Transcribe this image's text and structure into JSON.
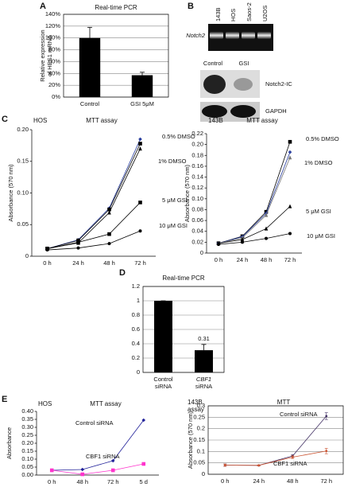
{
  "panel_labels": [
    "A",
    "B",
    "C",
    "D",
    "E"
  ],
  "gel": {
    "lanes": [
      "143B",
      "HOS",
      "Saos-2",
      "U2OS"
    ],
    "label": "Notch2"
  },
  "western": {
    "lanes": [
      "Control",
      "GSI"
    ],
    "bands": [
      "Notch2-IC",
      "GAPDH"
    ]
  },
  "chart_data": [
    {
      "type": "bar",
      "title": "Real-time PCR",
      "ylabel": [
        "Relative expression",
        "of HES1 mRNA"
      ],
      "categories": [
        "Control",
        "GSI 5μM"
      ],
      "values": [
        100,
        37
      ],
      "errors": [
        18,
        5
      ],
      "color": "#000000",
      "ylim": [
        0,
        140
      ],
      "yticks": [
        {
          "value": 0,
          "label": "0%"
        },
        {
          "value": 20,
          "label": "20%"
        },
        {
          "value": 40,
          "label": "40%"
        },
        {
          "value": 60,
          "label": "60%"
        },
        {
          "value": 80,
          "label": "80%"
        },
        {
          "value": 100,
          "label": "100%"
        },
        {
          "value": 120,
          "label": "120%"
        },
        {
          "value": 140,
          "label": "140%"
        }
      ],
      "grid": true
    },
    {
      "type": "line",
      "title": "MTT assay",
      "cell_line": "HOS",
      "ylabel": [
        "Absorbance (570 nm)"
      ],
      "categories": [
        "0 h",
        "24 h",
        "48 h",
        "72 h"
      ],
      "series": [
        {
          "color": "#2a3fa0",
          "marker": "diamond",
          "values": [
            0.012,
            0.026,
            0.076,
            0.185
          ]
        },
        {
          "name": "0.5% DMSO",
          "color": "#000000",
          "marker": "square",
          "values": [
            0.012,
            0.025,
            0.074,
            0.178
          ]
        },
        {
          "name": "1% DMSO",
          "color": "#000000",
          "marker": "triangle",
          "values": [
            0.012,
            0.021,
            0.069,
            0.17
          ]
        },
        {
          "name": "5 μM GSI",
          "color": "#000000",
          "marker": "square",
          "values": [
            0.012,
            0.022,
            0.035,
            0.085
          ]
        },
        {
          "name": "10 μM GSI",
          "color": "#000000",
          "marker": "circle",
          "values": [
            0.01,
            0.013,
            0.02,
            0.04
          ]
        }
      ],
      "ylim": [
        0,
        0.2
      ],
      "yticks": [
        0,
        0.05,
        {
          "value": 0.1,
          "label": "0.10"
        },
        0.15,
        {
          "value": 0.2,
          "label": "0.20"
        }
      ],
      "grid": false
    },
    {
      "type": "line",
      "title": "MTT assay",
      "cell_line": "143B",
      "ylabel": [
        "Absorbance (570 nm)"
      ],
      "categories": [
        "0 h",
        "24 h",
        "48 h",
        "72 h"
      ],
      "series": [
        {
          "name": "0.5% DMSO",
          "color": "#000000",
          "marker": "square",
          "values": [
            0.018,
            0.031,
            0.076,
            0.205
          ]
        },
        {
          "color": "#2a3fa0",
          "marker": "diamond",
          "values": [
            0.018,
            0.03,
            0.073,
            0.186
          ]
        },
        {
          "name": "1% DMSO",
          "color": "#777777",
          "marker": "triangle",
          "values": [
            0.018,
            0.028,
            0.07,
            0.176
          ]
        },
        {
          "name": "5 μM GSI",
          "color": "#000000",
          "marker": "triangle",
          "values": [
            0.018,
            0.025,
            0.045,
            0.086
          ]
        },
        {
          "name": "10 μM GSI",
          "color": "#000000",
          "marker": "circle",
          "values": [
            0.016,
            0.02,
            0.027,
            0.036
          ]
        }
      ],
      "ylim": [
        0,
        0.22
      ],
      "yticks": [
        0,
        0.02,
        0.04,
        0.06,
        0.08,
        {
          "value": 0.1,
          "label": "0.10"
        },
        0.12,
        0.14,
        0.16,
        0.18,
        {
          "value": 0.2,
          "label": "0.20"
        },
        0.22
      ],
      "grid": false
    },
    {
      "type": "bar",
      "title": "Real-time PCR",
      "categories": [
        [
          "Control",
          "siRNA"
        ],
        [
          "CBF1",
          "siRNA"
        ]
      ],
      "values": [
        1,
        0.31
      ],
      "errors": [
        0,
        0.08
      ],
      "value_labels": [
        null,
        "0.31"
      ],
      "color": "#000000",
      "ylim": [
        0,
        1.2
      ],
      "yticks": [
        0,
        0.2,
        0.4,
        0.6,
        0.8,
        1,
        1.2
      ],
      "grid": true
    },
    {
      "type": "line",
      "title": "MTT assay",
      "cell_line": "HOS",
      "ylabel": [
        "Absorbance"
      ],
      "categories": [
        "0 h",
        "48 h",
        "72 h",
        "5 d"
      ],
      "series": [
        {
          "name": "Control siRNA",
          "color": "#22229a",
          "label_color": "#2233bb",
          "marker": "diamond",
          "values": [
            0.03,
            0.035,
            0.09,
            0.345
          ]
        },
        {
          "name": "CBF1 siRNA",
          "color": "#ff33cc",
          "label_color": "#e02020",
          "marker": "square",
          "values": [
            0.03,
            0.005,
            0.03,
            0.07
          ]
        }
      ],
      "ylim": [
        0,
        0.4
      ],
      "yticks": [
        {
          "value": 0,
          "label": "0.00"
        },
        0.05,
        {
          "value": 0.1,
          "label": "0.10"
        },
        0.15,
        {
          "value": 0.2,
          "label": "0.20"
        },
        0.25,
        {
          "value": 0.3,
          "label": "0.30"
        },
        0.35,
        {
          "value": 0.4,
          "label": "0.40"
        }
      ],
      "grid": false
    },
    {
      "type": "line",
      "title": "MTT",
      "cell_line": "143B",
      "subtitle": "assay",
      "ylabel": [
        "Absorbance (570 nm)"
      ],
      "categories": [
        "0 h",
        "24 h",
        "48 h",
        "72 h"
      ],
      "series": [
        {
          "name": "Control siRNA",
          "color": "#443366",
          "label_color": "#2288dd",
          "marker": "dot",
          "values": [
            0.04,
            0.039,
            0.08,
            0.255
          ],
          "errors": [
            0.005,
            0.002,
            0.006,
            0.015
          ]
        },
        {
          "name": "CBF1 siRNA",
          "color": "#cc5533",
          "label_color": "#e02020",
          "marker": "dot",
          "values": [
            0.04,
            0.039,
            0.075,
            0.102
          ],
          "errors": [
            0.005,
            0.002,
            0.006,
            0.012
          ]
        }
      ],
      "ylim": [
        0,
        0.3
      ],
      "yticks": [
        0,
        0.05,
        0.1,
        0.15,
        0.2,
        0.25,
        0.3
      ],
      "grid": true
    }
  ]
}
